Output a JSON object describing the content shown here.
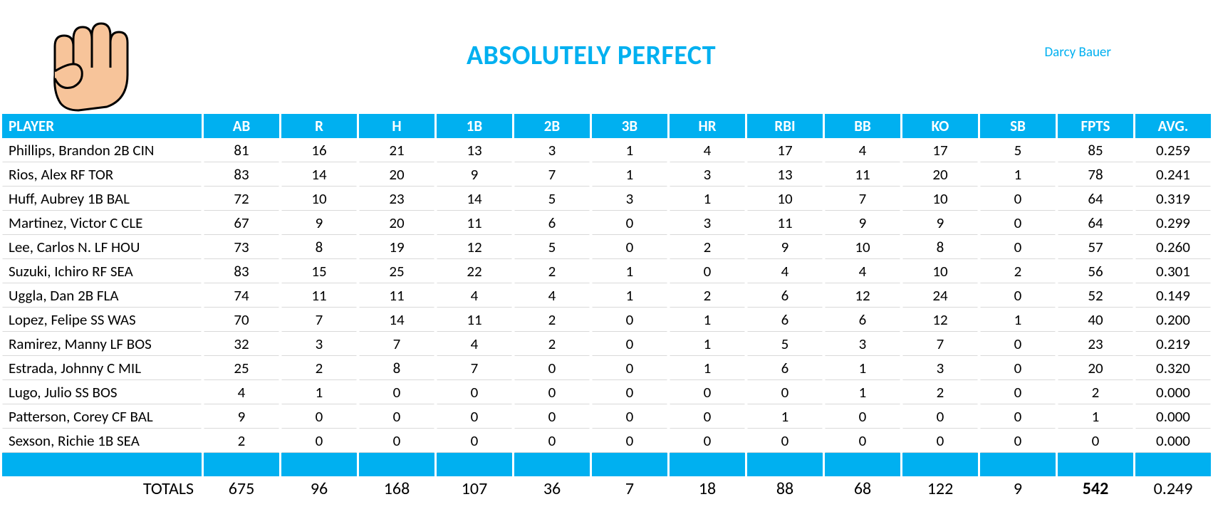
{
  "header": {
    "title": "ABSOLUTELY PERFECT",
    "author": "Darcy Bauer",
    "accent_color": "#00b0f0",
    "text_color": "#00b0f0"
  },
  "table": {
    "columns": [
      "PLAYER",
      "AB",
      "R",
      "H",
      "1B",
      "2B",
      "3B",
      "HR",
      "RBI",
      "BB",
      "KO",
      "SB",
      "FPTS",
      "AVG."
    ],
    "rows": [
      {
        "player": "Phillips, Brandon 2B CIN",
        "AB": 81,
        "R": 16,
        "H": 21,
        "1B": 13,
        "2B": 3,
        "3B": 1,
        "HR": 4,
        "RBI": 17,
        "BB": 4,
        "KO": 17,
        "SB": 5,
        "FPTS": 85,
        "AVG": "0.259"
      },
      {
        "player": "Rios, Alex RF TOR",
        "AB": 83,
        "R": 14,
        "H": 20,
        "1B": 9,
        "2B": 7,
        "3B": 1,
        "HR": 3,
        "RBI": 13,
        "BB": 11,
        "KO": 20,
        "SB": 1,
        "FPTS": 78,
        "AVG": "0.241"
      },
      {
        "player": "Huff, Aubrey 1B BAL",
        "AB": 72,
        "R": 10,
        "H": 23,
        "1B": 14,
        "2B": 5,
        "3B": 3,
        "HR": 1,
        "RBI": 10,
        "BB": 7,
        "KO": 10,
        "SB": 0,
        "FPTS": 64,
        "AVG": "0.319"
      },
      {
        "player": "Martinez, Victor C CLE",
        "AB": 67,
        "R": 9,
        "H": 20,
        "1B": 11,
        "2B": 6,
        "3B": 0,
        "HR": 3,
        "RBI": 11,
        "BB": 9,
        "KO": 9,
        "SB": 0,
        "FPTS": 64,
        "AVG": "0.299"
      },
      {
        "player": "Lee, Carlos N. LF HOU",
        "AB": 73,
        "R": 8,
        "H": 19,
        "1B": 12,
        "2B": 5,
        "3B": 0,
        "HR": 2,
        "RBI": 9,
        "BB": 10,
        "KO": 8,
        "SB": 0,
        "FPTS": 57,
        "AVG": "0.260"
      },
      {
        "player": "Suzuki, Ichiro RF SEA",
        "AB": 83,
        "R": 15,
        "H": 25,
        "1B": 22,
        "2B": 2,
        "3B": 1,
        "HR": 0,
        "RBI": 4,
        "BB": 4,
        "KO": 10,
        "SB": 2,
        "FPTS": 56,
        "AVG": "0.301"
      },
      {
        "player": "Uggla, Dan 2B FLA",
        "AB": 74,
        "R": 11,
        "H": 11,
        "1B": 4,
        "2B": 4,
        "3B": 1,
        "HR": 2,
        "RBI": 6,
        "BB": 12,
        "KO": 24,
        "SB": 0,
        "FPTS": 52,
        "AVG": "0.149"
      },
      {
        "player": "Lopez, Felipe SS WAS",
        "AB": 70,
        "R": 7,
        "H": 14,
        "1B": 11,
        "2B": 2,
        "3B": 0,
        "HR": 1,
        "RBI": 6,
        "BB": 6,
        "KO": 12,
        "SB": 1,
        "FPTS": 40,
        "AVG": "0.200"
      },
      {
        "player": "Ramirez, Manny LF BOS",
        "AB": 32,
        "R": 3,
        "H": 7,
        "1B": 4,
        "2B": 2,
        "3B": 0,
        "HR": 1,
        "RBI": 5,
        "BB": 3,
        "KO": 7,
        "SB": 0,
        "FPTS": 23,
        "AVG": "0.219"
      },
      {
        "player": "Estrada, Johnny C MIL",
        "AB": 25,
        "R": 2,
        "H": 8,
        "1B": 7,
        "2B": 0,
        "3B": 0,
        "HR": 1,
        "RBI": 6,
        "BB": 1,
        "KO": 3,
        "SB": 0,
        "FPTS": 20,
        "AVG": "0.320"
      },
      {
        "player": "Lugo, Julio SS BOS",
        "AB": 4,
        "R": 1,
        "H": 0,
        "1B": 0,
        "2B": 0,
        "3B": 0,
        "HR": 0,
        "RBI": 0,
        "BB": 1,
        "KO": 2,
        "SB": 0,
        "FPTS": 2,
        "AVG": "0.000"
      },
      {
        "player": "Patterson, Corey CF BAL",
        "AB": 9,
        "R": 0,
        "H": 0,
        "1B": 0,
        "2B": 0,
        "3B": 0,
        "HR": 0,
        "RBI": 1,
        "BB": 0,
        "KO": 0,
        "SB": 0,
        "FPTS": 1,
        "AVG": "0.000"
      },
      {
        "player": "Sexson, Richie 1B SEA",
        "AB": 2,
        "R": 0,
        "H": 0,
        "1B": 0,
        "2B": 0,
        "3B": 0,
        "HR": 0,
        "RBI": 0,
        "BB": 0,
        "KO": 0,
        "SB": 0,
        "FPTS": 0,
        "AVG": "0.000"
      }
    ],
    "totals": {
      "label": "TOTALS",
      "AB": 675,
      "R": 96,
      "H": 168,
      "1B": 107,
      "2B": 36,
      "3B": 7,
      "HR": 18,
      "RBI": 88,
      "BB": 68,
      "KO": 122,
      "SB": 9,
      "FPTS": 542,
      "AVG": "0.249"
    }
  },
  "colors": {
    "header_bg": "#00b0f0",
    "header_fg": "#ffffff",
    "row_border": "#d9d9d9",
    "body_fg": "#000000"
  }
}
